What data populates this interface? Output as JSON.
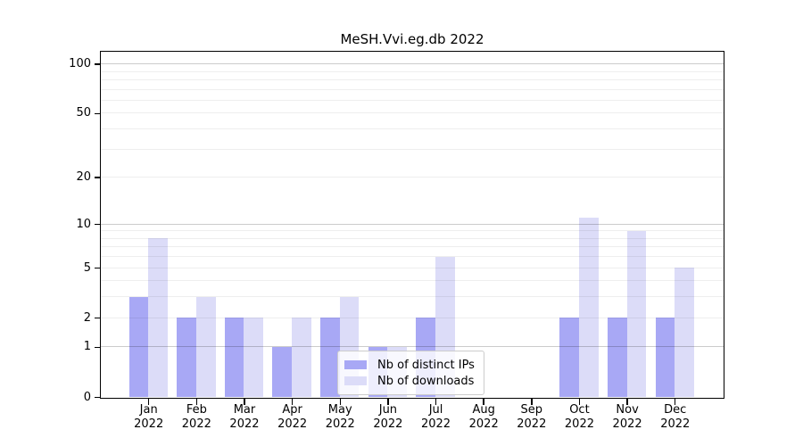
{
  "title": "MeSH.Vvi.eg.db 2022",
  "chart_data": {
    "type": "bar",
    "title": "MeSH.Vvi.eg.db 2022",
    "categories": [
      "Jan",
      "Feb",
      "Mar",
      "Apr",
      "May",
      "Jun",
      "Jul",
      "Aug",
      "Sep",
      "Oct",
      "Nov",
      "Dec"
    ],
    "year_label": "2022",
    "series": [
      {
        "name": "Nb of distinct IPs",
        "color": "#a8a8f5",
        "values": [
          3,
          2,
          2,
          1,
          2,
          1,
          2,
          0,
          0,
          2,
          2,
          2
        ]
      },
      {
        "name": "Nb of downloads",
        "color": "#dcdcf8",
        "values": [
          8,
          3,
          2,
          2,
          3,
          1,
          6,
          0,
          0,
          11,
          9,
          5
        ]
      }
    ],
    "y_scale": "log1p",
    "y_ticks": [
      0,
      1,
      2,
      5,
      10,
      20,
      50,
      100
    ],
    "y_major_gridlines": [
      1,
      10,
      100
    ],
    "y_minor_gridlines": [
      2,
      3,
      4,
      5,
      6,
      7,
      8,
      9,
      20,
      30,
      40,
      50,
      60,
      70,
      80,
      90
    ],
    "ylim": [
      0,
      119
    ],
    "grid": "on",
    "legend_position": "inside-lower-center"
  }
}
